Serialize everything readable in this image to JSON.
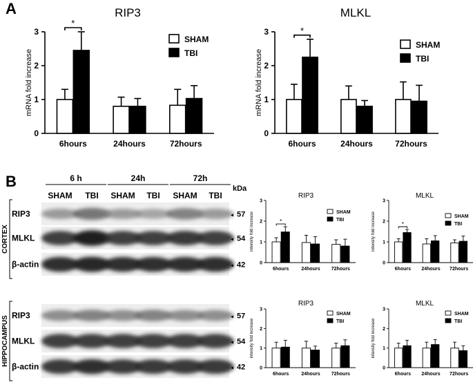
{
  "figure": {
    "panel_a_label": "A",
    "panel_b_label": "B"
  },
  "colors": {
    "sham": "#ffffff",
    "tbi": "#000000",
    "axis": "#000000"
  },
  "chart_data": [
    {
      "id": "a-rip3",
      "type": "bar",
      "title": "RIP3",
      "ylabel": "mRNA fold increase",
      "categories": [
        "6hours",
        "24hours",
        "72hours"
      ],
      "ylim": [
        0,
        3
      ],
      "yticks": [
        "0",
        "1",
        "2",
        "3"
      ],
      "legend": [
        "SHAM",
        "TBI"
      ],
      "sig": "*",
      "sig_group": 0,
      "series": [
        {
          "name": "SHAM",
          "values": [
            1.0,
            0.8,
            0.83
          ],
          "errors": [
            0.3,
            0.27,
            0.47
          ]
        },
        {
          "name": "TBI",
          "values": [
            2.45,
            0.8,
            1.03
          ],
          "errors": [
            0.55,
            0.23,
            0.38
          ]
        }
      ]
    },
    {
      "id": "a-mlkl",
      "type": "bar",
      "title": "MLKL",
      "ylabel": "mRNA fold increase",
      "categories": [
        "6hours",
        "24hours",
        "72hours"
      ],
      "ylim": [
        0,
        3
      ],
      "yticks": [
        "0",
        "1",
        "2",
        "3"
      ],
      "legend": [
        "SHAM",
        "TBI"
      ],
      "sig": "*",
      "sig_group": 0,
      "series": [
        {
          "name": "SHAM",
          "values": [
            1.0,
            1.0,
            1.0
          ],
          "errors": [
            0.45,
            0.4,
            0.52
          ]
        },
        {
          "name": "TBI",
          "values": [
            2.25,
            0.8,
            0.95
          ],
          "errors": [
            0.53,
            0.17,
            0.47
          ]
        }
      ]
    },
    {
      "id": "b-ctx-rip3",
      "type": "bar",
      "title": "RIP3",
      "ylabel": "intensity fold increase",
      "categories": [
        "6hours",
        "24hours",
        "72hours"
      ],
      "ylim": [
        0,
        3
      ],
      "yticks": [
        "0",
        "1",
        "2",
        "3"
      ],
      "legend": [
        "SHAM",
        "TBI"
      ],
      "sig": "*",
      "sig_group": 0,
      "series": [
        {
          "name": "SHAM",
          "values": [
            1.0,
            0.97,
            0.88
          ],
          "errors": [
            0.2,
            0.35,
            0.22
          ]
        },
        {
          "name": "TBI",
          "values": [
            1.48,
            0.9,
            0.8
          ],
          "errors": [
            0.25,
            0.35,
            0.33
          ]
        }
      ]
    },
    {
      "id": "b-ctx-mlkl",
      "type": "bar",
      "title": "MLKL",
      "ylabel": "intensity fold increase",
      "categories": [
        "6hours",
        "24hours",
        "72hours"
      ],
      "ylim": [
        0,
        3
      ],
      "yticks": [
        "0",
        "1",
        "2",
        "3"
      ],
      "legend": [
        "SHAM",
        "TBI"
      ],
      "sig": "*",
      "sig_group": 0,
      "series": [
        {
          "name": "SHAM",
          "values": [
            1.0,
            0.9,
            0.95
          ],
          "errors": [
            0.15,
            0.25,
            0.15
          ]
        },
        {
          "name": "TBI",
          "values": [
            1.45,
            1.05,
            1.03
          ],
          "errors": [
            0.15,
            0.25,
            0.25
          ]
        }
      ]
    },
    {
      "id": "b-hip-rip3",
      "type": "bar",
      "title": "RIP3",
      "ylabel": "intensity fold increase",
      "categories": [
        "6hours",
        "24hours",
        "72hours"
      ],
      "ylim": [
        0,
        3
      ],
      "yticks": [
        "0",
        "1",
        "2",
        "3"
      ],
      "legend": [
        "SHAM",
        "TBI"
      ],
      "sig": "",
      "sig_group": -1,
      "series": [
        {
          "name": "SHAM",
          "values": [
            1.0,
            1.0,
            1.0
          ],
          "errors": [
            0.3,
            0.35,
            0.25
          ]
        },
        {
          "name": "TBI",
          "values": [
            1.05,
            0.9,
            1.12
          ],
          "errors": [
            0.35,
            0.2,
            0.3
          ]
        }
      ]
    },
    {
      "id": "b-hip-mlkl",
      "type": "bar",
      "title": "MLKL",
      "ylabel": "intensity fold increase",
      "categories": [
        "6hours",
        "24hours",
        "72hours"
      ],
      "ylim": [
        0,
        3
      ],
      "yticks": [
        "0",
        "1",
        "2",
        "3"
      ],
      "legend": [
        "SHAM",
        "TBI"
      ],
      "sig": "",
      "sig_group": -1,
      "series": [
        {
          "name": "SHAM",
          "values": [
            1.0,
            1.0,
            1.0
          ],
          "errors": [
            0.25,
            0.3,
            0.3
          ]
        },
        {
          "name": "TBI",
          "values": [
            1.12,
            1.18,
            0.87
          ],
          "errors": [
            0.28,
            0.25,
            0.25
          ]
        }
      ]
    }
  ],
  "blot": {
    "timepoints": [
      "6 h",
      "24h",
      "72h"
    ],
    "groups": [
      "SHAM",
      "TBI",
      "SHAM",
      "TBI",
      "SHAM",
      "TBI"
    ],
    "kda_label": "kDa",
    "regions": [
      {
        "name": "CORTEX",
        "rows": [
          {
            "protein": "RIP3",
            "kda": "57",
            "intensity": [
              0.45,
              0.6,
              0.45,
              0.4,
              0.55,
              0.45
            ]
          },
          {
            "protein": "MLKL",
            "kda": "54",
            "intensity": [
              0.8,
              0.9,
              0.8,
              0.8,
              0.82,
              0.8
            ]
          },
          {
            "protein": "β-actin",
            "kda": "42",
            "intensity": [
              0.85,
              0.88,
              0.85,
              0.85,
              0.85,
              0.85
            ]
          }
        ]
      },
      {
        "name": "HIPPOCAMPUS",
        "rows": [
          {
            "protein": "RIP3",
            "kda": "57",
            "intensity": [
              0.5,
              0.55,
              0.5,
              0.55,
              0.5,
              0.5
            ]
          },
          {
            "protein": "MLKL",
            "kda": "54",
            "intensity": [
              0.8,
              0.8,
              0.8,
              0.8,
              0.8,
              0.8
            ]
          },
          {
            "protein": "β-actin",
            "kda": "42",
            "intensity": [
              0.82,
              0.85,
              0.82,
              0.82,
              0.82,
              0.82
            ]
          }
        ]
      }
    ]
  }
}
